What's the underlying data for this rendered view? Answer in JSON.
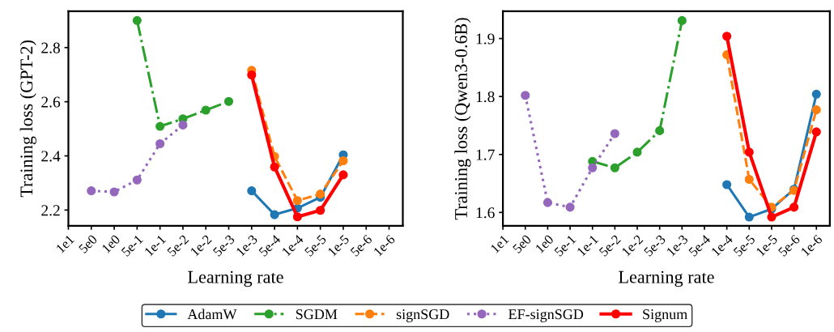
{
  "chart_data": [
    {
      "type": "line",
      "xlabel": "Learning rate",
      "ylabel": "Training loss (GPT-2)",
      "categories": [
        "1e1",
        "5e0",
        "1e0",
        "5e-1",
        "1e-1",
        "5e-2",
        "1e-2",
        "5e-3",
        "1e-3",
        "5e-4",
        "1e-4",
        "5e-5",
        "1e-5",
        "5e-6",
        "1e-6"
      ],
      "ylim": [
        2.142,
        2.934
      ],
      "yticks": [
        2.2,
        2.4,
        2.6,
        2.8
      ],
      "grid": false,
      "legend": "bottom",
      "marker": "circle",
      "series": [
        {
          "name": "AdamW",
          "color": "#1f77b4",
          "line_style": "solid",
          "values": [
            null,
            null,
            null,
            null,
            null,
            null,
            null,
            null,
            2.271,
            2.183,
            2.207,
            2.247,
            2.404,
            null,
            null
          ]
        },
        {
          "name": "SGDM",
          "color": "#2ca02c",
          "line_style": "dashdot",
          "values": [
            null,
            null,
            null,
            2.9,
            2.509,
            2.537,
            2.569,
            2.601,
            null,
            null,
            null,
            null,
            null,
            null,
            null
          ]
        },
        {
          "name": "signSGD",
          "color": "#ff7f0e",
          "line_style": "dashed",
          "values": [
            null,
            null,
            null,
            null,
            null,
            null,
            null,
            null,
            2.716,
            2.398,
            2.235,
            2.259,
            2.382,
            null,
            null
          ]
        },
        {
          "name": "EF-signSGD",
          "color": "#9467bd",
          "line_style": "dotted",
          "values": [
            null,
            2.271,
            2.267,
            2.311,
            2.445,
            2.514,
            null,
            null,
            null,
            null,
            null,
            null,
            null,
            null,
            null
          ]
        },
        {
          "name": "Signum",
          "color": "#ff0000",
          "line_style": "solid",
          "values": [
            null,
            null,
            null,
            null,
            null,
            null,
            null,
            null,
            2.699,
            2.359,
            2.175,
            2.199,
            2.33,
            null,
            null
          ]
        }
      ]
    },
    {
      "type": "line",
      "xlabel": "Learning rate",
      "ylabel": "Training loss (Qwen3-0.6B)",
      "categories": [
        "1e1",
        "5e0",
        "1e0",
        "5e-1",
        "1e-1",
        "5e-2",
        "1e-2",
        "5e-3",
        "1e-3",
        "5e-4",
        "1e-4",
        "5e-5",
        "1e-5",
        "5e-6",
        "1e-6"
      ],
      "ylim": [
        1.577,
        1.947
      ],
      "yticks": [
        1.6,
        1.7,
        1.8,
        1.9
      ],
      "grid": false,
      "legend": "bottom",
      "marker": "circle",
      "series": [
        {
          "name": "AdamW",
          "color": "#1f77b4",
          "line_style": "solid",
          "values": [
            null,
            null,
            null,
            null,
            null,
            null,
            null,
            null,
            null,
            null,
            1.648,
            1.592,
            1.606,
            1.64,
            1.804
          ]
        },
        {
          "name": "SGDM",
          "color": "#2ca02c",
          "line_style": "dashdot",
          "values": [
            null,
            null,
            null,
            null,
            1.688,
            1.677,
            1.704,
            1.741,
            1.931,
            null,
            null,
            null,
            null,
            null,
            null
          ]
        },
        {
          "name": "signSGD",
          "color": "#ff7f0e",
          "line_style": "dashed",
          "values": [
            null,
            null,
            null,
            null,
            null,
            null,
            null,
            null,
            null,
            null,
            1.872,
            1.657,
            1.609,
            1.638,
            1.777
          ]
        },
        {
          "name": "EF-signSGD",
          "color": "#9467bd",
          "line_style": "dotted",
          "values": [
            null,
            1.802,
            1.617,
            1.609,
            1.677,
            1.736,
            null,
            null,
            null,
            null,
            null,
            null,
            null,
            null,
            null
          ]
        },
        {
          "name": "Signum",
          "color": "#ff0000",
          "line_style": "solid",
          "values": [
            null,
            null,
            null,
            null,
            null,
            null,
            null,
            null,
            null,
            null,
            1.904,
            1.704,
            1.592,
            1.609,
            1.739
          ]
        }
      ]
    }
  ]
}
